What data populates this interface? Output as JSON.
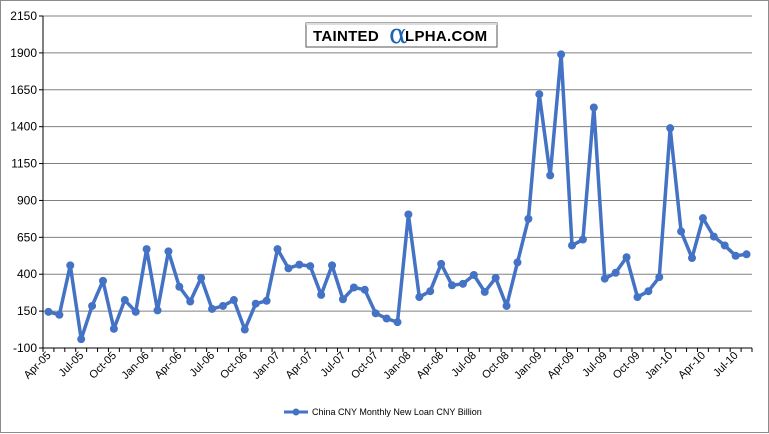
{
  "logo": {
    "part1": "TAINTED",
    "alpha": "α",
    "part2": "LPHA.COM"
  },
  "colors": {
    "series": "#4472C4",
    "grid": "#808080",
    "logo_alpha": "#1e63b3"
  },
  "chart_data": {
    "type": "line",
    "title": "",
    "xlabel": "",
    "ylabel": "",
    "ylim": [
      -100,
      2150
    ],
    "yticks": [
      -100,
      150,
      400,
      650,
      900,
      1150,
      1400,
      1650,
      1900,
      2150
    ],
    "yticks_labels": [
      "-100",
      "150",
      "400",
      "650",
      "900",
      "1150",
      "1400",
      "1650",
      "1900",
      "2150"
    ],
    "grid": true,
    "legend_position": "bottom",
    "x": [
      "Apr-05",
      "May-05",
      "Jun-05",
      "Jul-05",
      "Aug-05",
      "Sep-05",
      "Oct-05",
      "Nov-05",
      "Dec-05",
      "Jan-06",
      "Feb-06",
      "Mar-06",
      "Apr-06",
      "May-06",
      "Jun-06",
      "Jul-06",
      "Aug-06",
      "Sep-06",
      "Oct-06",
      "Nov-06",
      "Dec-06",
      "Jan-07",
      "Feb-07",
      "Mar-07",
      "Apr-07",
      "May-07",
      "Jun-07",
      "Jul-07",
      "Aug-07",
      "Sep-07",
      "Oct-07",
      "Nov-07",
      "Dec-07",
      "Jan-08",
      "Feb-08",
      "Mar-08",
      "Apr-08",
      "May-08",
      "Jun-08",
      "Jul-08",
      "Aug-08",
      "Sep-08",
      "Oct-08",
      "Nov-08",
      "Dec-08",
      "Jan-09",
      "Feb-09",
      "Mar-09",
      "Apr-09",
      "May-09",
      "Jun-09",
      "Jul-09",
      "Aug-09",
      "Sep-09",
      "Oct-09",
      "Nov-09",
      "Dec-09",
      "Jan-10",
      "Feb-10",
      "Mar-10",
      "Apr-10",
      "May-10",
      "Jun-10",
      "Jul-10",
      "Aug-10"
    ],
    "x_tick_labels": [
      "Apr-05",
      "Jul-05",
      "Oct-05",
      "Jan-06",
      "Apr-06",
      "Jul-06",
      "Oct-06",
      "Jan-07",
      "Apr-07",
      "Jul-07",
      "Oct-07",
      "Jan-08",
      "Apr-08",
      "Jul-08",
      "Oct-08",
      "Jan-09",
      "Apr-09",
      "Jul-09",
      "Oct-09",
      "Jan-10",
      "Apr-10",
      "Jul-10"
    ],
    "series": [
      {
        "name": "China CNY Monthly New Loan CNY Billion",
        "values": [
          145,
          125,
          460,
          -40,
          185,
          355,
          30,
          225,
          145,
          570,
          155,
          555,
          315,
          215,
          375,
          165,
          185,
          225,
          25,
          200,
          220,
          570,
          440,
          465,
          455,
          260,
          460,
          230,
          310,
          295,
          135,
          100,
          75,
          805,
          245,
          285,
          470,
          325,
          335,
          395,
          280,
          375,
          185,
          480,
          775,
          1620,
          1070,
          1890,
          595,
          635,
          1530,
          370,
          410,
          515,
          245,
          285,
          380,
          1390,
          690,
          510,
          780,
          655,
          595,
          525,
          535
        ]
      }
    ]
  }
}
